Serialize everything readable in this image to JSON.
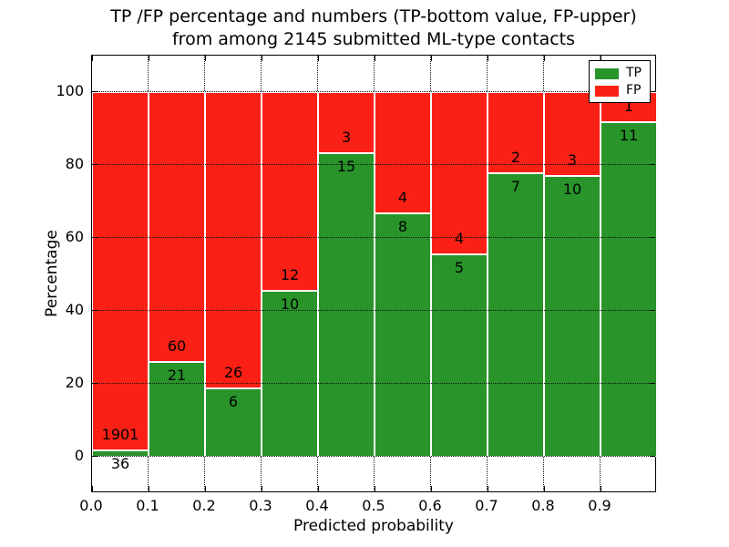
{
  "title": {
    "line1": "TP /FP percentage and numbers (TP-bottom value, FP-upper)",
    "line2": "from among 2145 submitted ML-type contacts"
  },
  "axes": {
    "xlabel": "Predicted probability",
    "ylabel": "Percentage",
    "y_ticks": [
      0,
      20,
      40,
      60,
      80,
      100
    ],
    "x_ticks": [
      "0.0",
      "0.1",
      "0.2",
      "0.3",
      "0.4",
      "0.5",
      "0.6",
      "0.7",
      "0.8",
      "0.9"
    ],
    "ylim": [
      -10,
      110
    ],
    "xlim": [
      0.0,
      1.0
    ],
    "grid_style": "dotted"
  },
  "legend": {
    "position": "upper-right",
    "items": [
      {
        "label": "TP",
        "color": "#28942a"
      },
      {
        "label": "FP",
        "color": "#fb2015"
      }
    ]
  },
  "chart_data": {
    "type": "bar",
    "subtype": "stacked-percentage",
    "title": "TP /FP percentage and numbers (TP-bottom value, FP-upper) from among 2145 submitted ML-type contacts",
    "xlabel": "Predicted probability",
    "ylabel": "Percentage",
    "total_contacts": 2145,
    "categories": [
      "0.0-0.1",
      "0.1-0.2",
      "0.2-0.3",
      "0.3-0.4",
      "0.4-0.5",
      "0.5-0.6",
      "0.6-0.7",
      "0.7-0.8",
      "0.8-0.9",
      "0.9-1.0"
    ],
    "series": [
      {
        "name": "TP",
        "color": "#28942a",
        "counts": [
          36,
          21,
          6,
          10,
          15,
          8,
          5,
          7,
          10,
          11
        ],
        "percent": [
          1.86,
          25.93,
          18.75,
          45.45,
          83.33,
          66.67,
          55.56,
          77.78,
          76.92,
          91.67
        ]
      },
      {
        "name": "FP",
        "color": "#fb2015",
        "counts": [
          1901,
          60,
          26,
          12,
          3,
          4,
          4,
          2,
          3,
          1
        ],
        "percent": [
          98.14,
          74.07,
          81.25,
          54.55,
          16.67,
          33.33,
          44.44,
          22.22,
          23.08,
          8.33
        ]
      }
    ],
    "annotation_rule": "FP count printed above TP/FP boundary, TP count printed below boundary",
    "ylim": [
      -10,
      110
    ],
    "legend_position": "upper-right",
    "grid": true
  }
}
